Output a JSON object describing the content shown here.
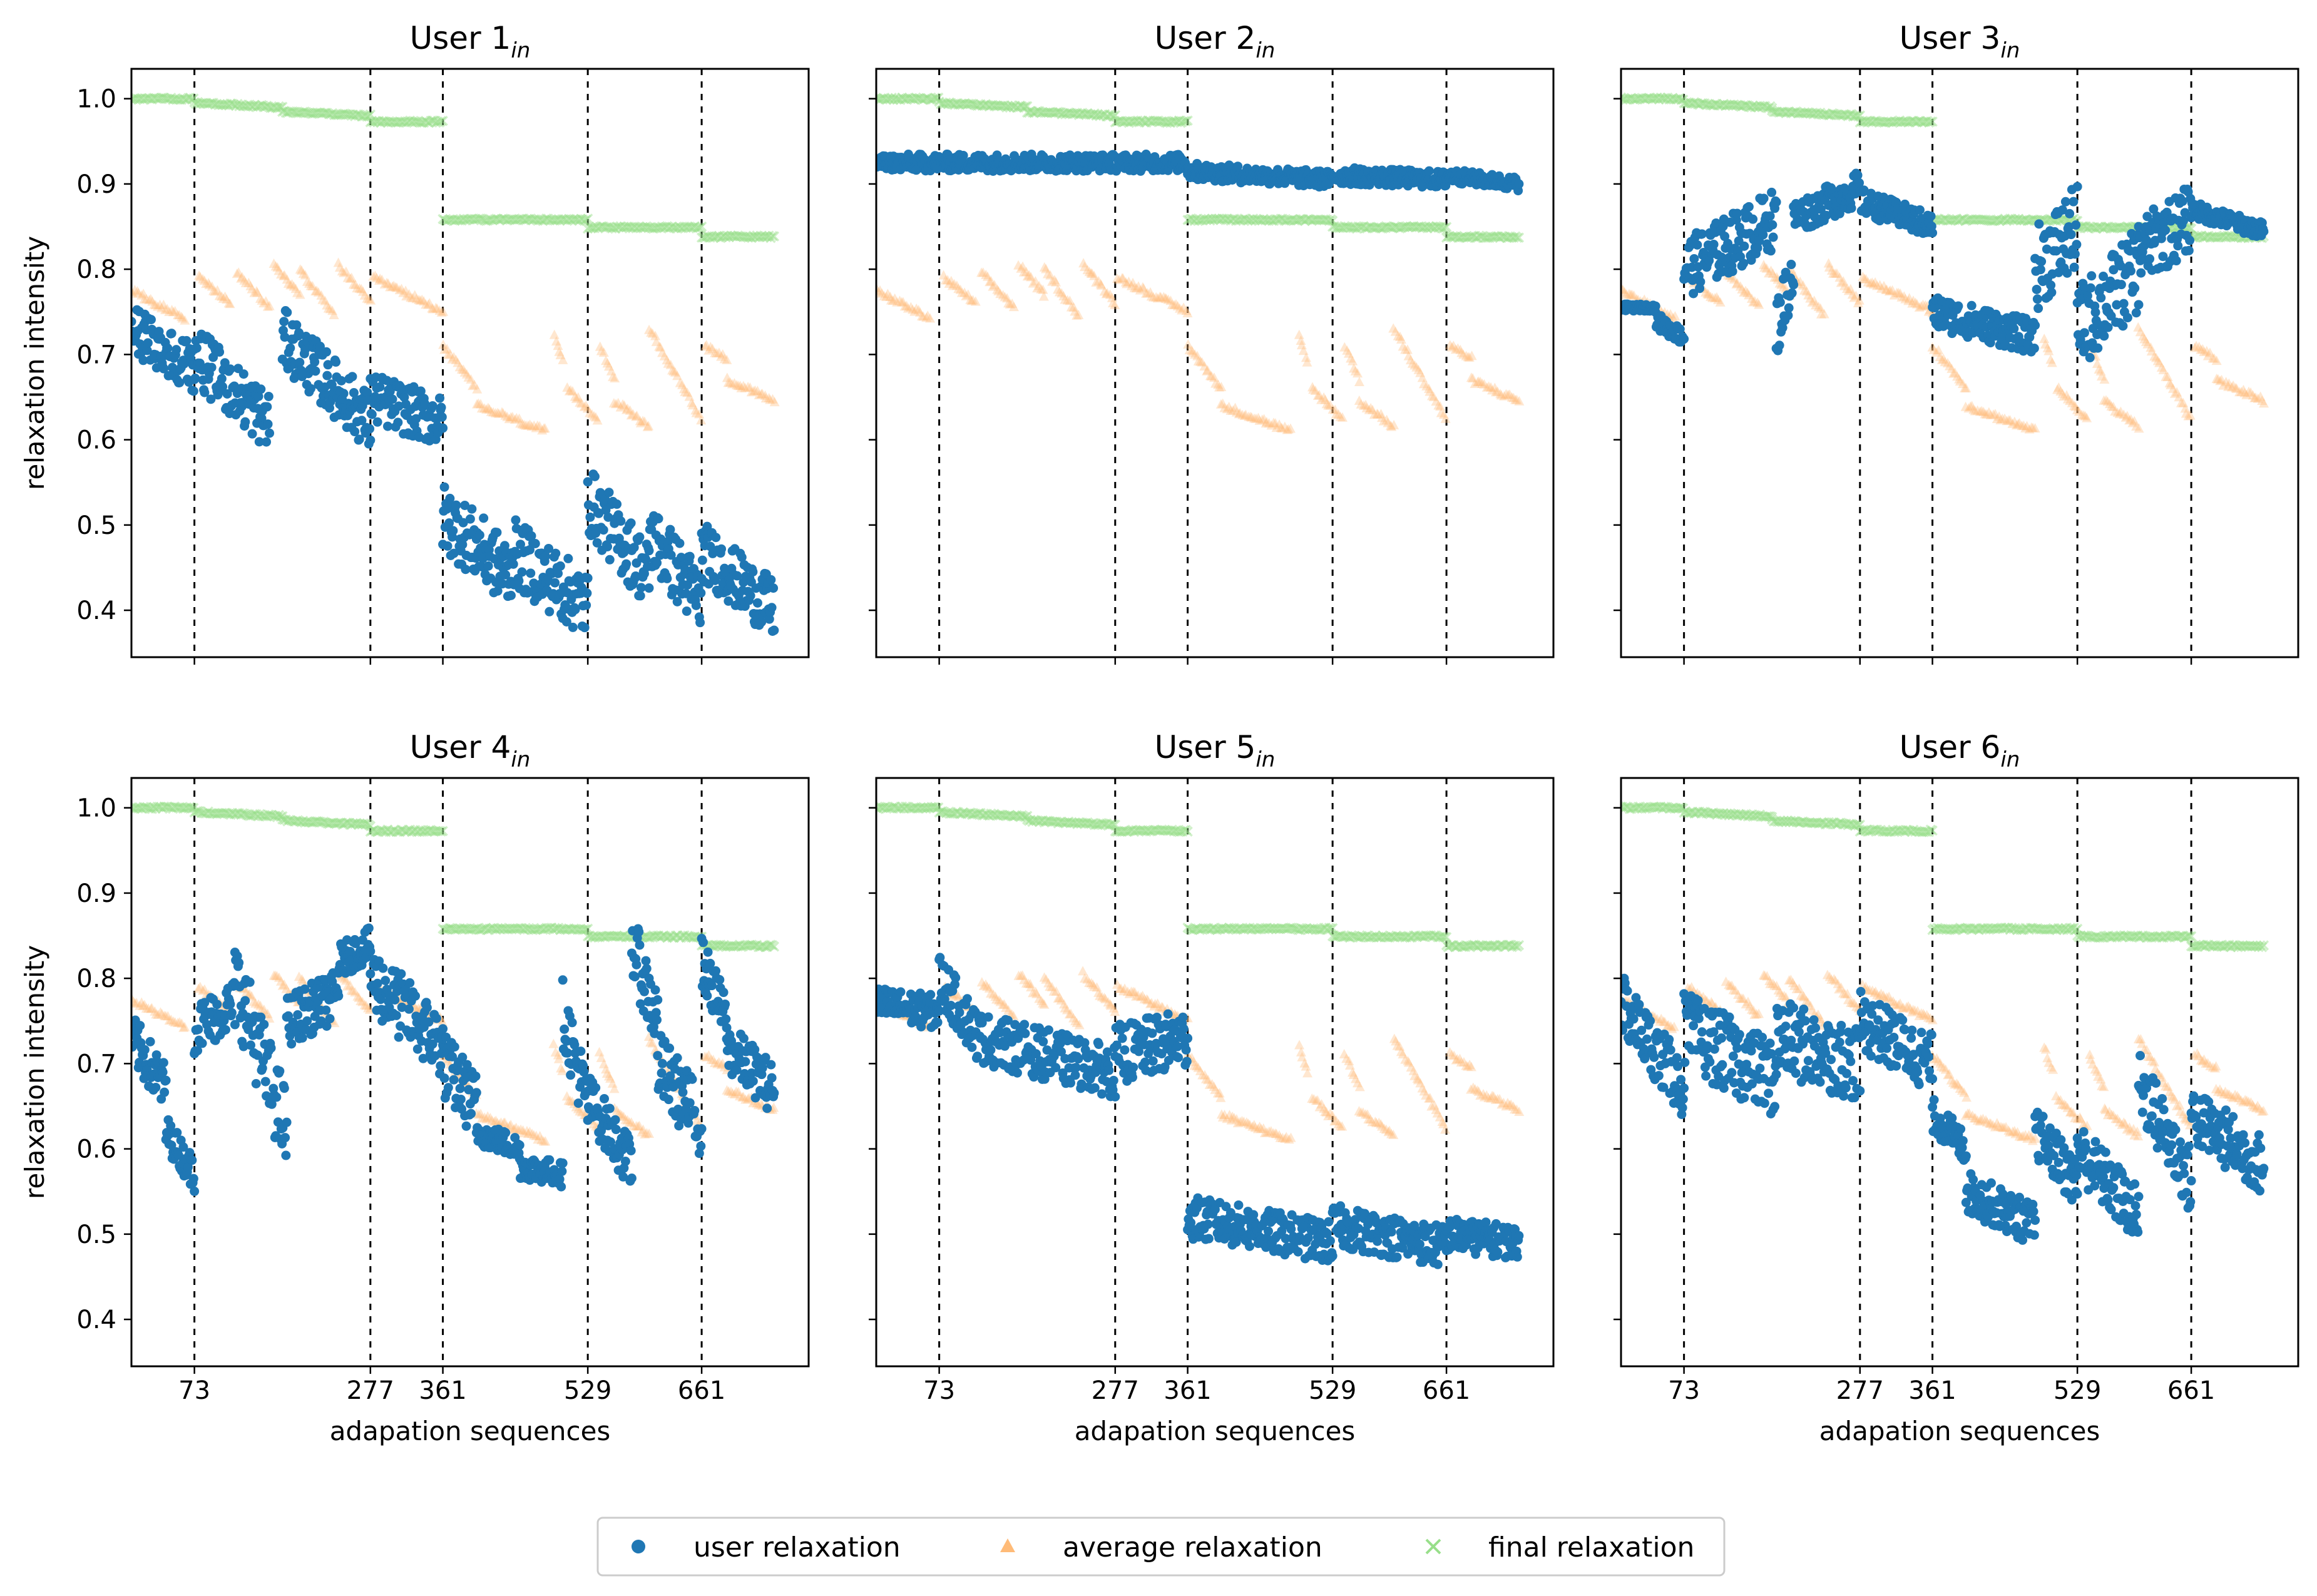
{
  "figure": {
    "legend_label": "legend"
  },
  "chart_data": {
    "type": "scatter",
    "ylabel": "relaxation intensity",
    "xlabel": "adapation sequences",
    "xlim": [
      0,
      785
    ],
    "ylim": [
      0.345,
      1.035
    ],
    "xticks": [
      73,
      277,
      361,
      529,
      661
    ],
    "yticks": [
      0.4,
      0.5,
      0.6,
      0.7,
      0.8,
      0.9,
      1.0
    ],
    "ytick_labels": [
      "0.4",
      "0.5",
      "0.6",
      "0.7",
      "0.8",
      "0.9",
      "1.0"
    ],
    "xtick_labels": [
      "73",
      "277",
      "361",
      "529",
      "661"
    ],
    "boundaries": [
      73,
      277,
      361,
      529,
      661
    ],
    "colors": {
      "user": "#1f77b4",
      "average": "#ffbb78",
      "final": "#98df8a"
    },
    "legend": [
      {
        "name": "user relaxation",
        "marker": "circle"
      },
      {
        "name": "average relaxation",
        "marker": "triangle"
      },
      {
        "name": "final relaxation",
        "marker": "x"
      }
    ],
    "final_relaxation": [
      {
        "x": [
          0,
          73
        ],
        "y": [
          1.0,
          1.0
        ]
      },
      {
        "x": [
          73,
          175
        ],
        "y": [
          0.995,
          0.99
        ]
      },
      {
        "x": [
          175,
          277
        ],
        "y": [
          0.985,
          0.98
        ]
      },
      {
        "x": [
          277,
          361
        ],
        "y": [
          0.973,
          0.973
        ]
      },
      {
        "x": [
          361,
          529
        ],
        "y": [
          0.858,
          0.858
        ]
      },
      {
        "x": [
          529,
          661
        ],
        "y": [
          0.849,
          0.849
        ]
      },
      {
        "x": [
          661,
          745
        ],
        "y": [
          0.838,
          0.838
        ]
      }
    ],
    "average_relaxation": [
      {
        "x": [
          0,
          62
        ],
        "y": [
          0.775,
          0.742
        ]
      },
      {
        "x": [
          78,
          115
        ],
        "y": [
          0.79,
          0.76
        ]
      },
      {
        "x": [
          122,
          160
        ],
        "y": [
          0.795,
          0.755
        ]
      },
      {
        "x": [
          165,
          195
        ],
        "y": [
          0.805,
          0.77
        ]
      },
      {
        "x": [
          195,
          235
        ],
        "y": [
          0.8,
          0.745
        ]
      },
      {
        "x": [
          240,
          277
        ],
        "y": [
          0.805,
          0.76
        ]
      },
      {
        "x": [
          280,
          361
        ],
        "y": [
          0.79,
          0.75
        ]
      },
      {
        "x": [
          361,
          400
        ],
        "y": [
          0.71,
          0.66
        ]
      },
      {
        "x": [
          400,
          480
        ],
        "y": [
          0.64,
          0.61
        ]
      },
      {
        "x": [
          490,
          500
        ],
        "y": [
          0.72,
          0.69
        ]
      },
      {
        "x": [
          505,
          540
        ],
        "y": [
          0.66,
          0.625
        ]
      },
      {
        "x": [
          543,
          560
        ],
        "y": [
          0.71,
          0.67
        ]
      },
      {
        "x": [
          560,
          600
        ],
        "y": [
          0.645,
          0.615
        ]
      },
      {
        "x": [
          600,
          660
        ],
        "y": [
          0.73,
          0.625
        ]
      },
      {
        "x": [
          665,
          690
        ],
        "y": [
          0.71,
          0.695
        ]
      },
      {
        "x": [
          690,
          745
        ],
        "y": [
          0.67,
          0.645
        ]
      }
    ],
    "panels": [
      {
        "title": "User 1",
        "subscript": "in",
        "user_relaxation": [
          {
            "x": [
              0,
              73
            ],
            "y": [
              0.73,
              0.685
            ],
            "spread": 0.03
          },
          {
            "x": [
              73,
              160
            ],
            "y": [
              0.7,
              0.62
            ],
            "spread": 0.035
          },
          {
            "x": [
              175,
              277
            ],
            "y": [
              0.72,
              0.62
            ],
            "spread": 0.035
          },
          {
            "x": [
              277,
              361
            ],
            "y": [
              0.65,
              0.62
            ],
            "spread": 0.03
          },
          {
            "x": [
              361,
              440
            ],
            "y": [
              0.51,
              0.44
            ],
            "spread": 0.04
          },
          {
            "x": [
              440,
              529
            ],
            "y": [
              0.47,
              0.405
            ],
            "spread": 0.04
          },
          {
            "x": [
              529,
              600
            ],
            "y": [
              0.53,
              0.44
            ],
            "spread": 0.04
          },
          {
            "x": [
              600,
              661
            ],
            "y": [
              0.49,
              0.41
            ],
            "spread": 0.04
          },
          {
            "x": [
              661,
              745
            ],
            "y": [
              0.47,
              0.4
            ],
            "spread": 0.035
          }
        ]
      },
      {
        "title": "User 2",
        "subscript": "in",
        "user_relaxation": [
          {
            "x": [
              0,
              361
            ],
            "y": [
              0.925,
              0.925
            ],
            "spread": 0.01
          },
          {
            "x": [
              361,
              529
            ],
            "y": [
              0.915,
              0.905
            ],
            "spread": 0.01
          },
          {
            "x": [
              529,
              661
            ],
            "y": [
              0.91,
              0.905
            ],
            "spread": 0.01
          },
          {
            "x": [
              661,
              745
            ],
            "y": [
              0.91,
              0.9
            ],
            "spread": 0.008
          }
        ]
      },
      {
        "title": "User 3",
        "subscript": "in",
        "user_relaxation": [
          {
            "x": [
              0,
              40
            ],
            "y": [
              0.755,
              0.755
            ],
            "spread": 0.004
          },
          {
            "x": [
              40,
              73
            ],
            "y": [
              0.74,
              0.72
            ],
            "spread": 0.01
          },
          {
            "x": [
              73,
              180
            ],
            "y": [
              0.8,
              0.86
            ],
            "spread": 0.035
          },
          {
            "x": [
              180,
              200
            ],
            "y": [
              0.73,
              0.8
            ],
            "spread": 0.035
          },
          {
            "x": [
              200,
              277
            ],
            "y": [
              0.86,
              0.895
            ],
            "spread": 0.02
          },
          {
            "x": [
              277,
              361
            ],
            "y": [
              0.88,
              0.85
            ],
            "spread": 0.015
          },
          {
            "x": [
              361,
              480
            ],
            "y": [
              0.75,
              0.72
            ],
            "spread": 0.02
          },
          {
            "x": [
              480,
              529
            ],
            "y": [
              0.8,
              0.85
            ],
            "spread": 0.05
          },
          {
            "x": [
              529,
              600
            ],
            "y": [
              0.73,
              0.8
            ],
            "spread": 0.05
          },
          {
            "x": [
              600,
              661
            ],
            "y": [
              0.82,
              0.86
            ],
            "spread": 0.04
          },
          {
            "x": [
              661,
              745
            ],
            "y": [
              0.87,
              0.845
            ],
            "spread": 0.01
          }
        ]
      },
      {
        "title": "User 4",
        "subscript": "in",
        "user_relaxation": [
          {
            "x": [
              0,
              40
            ],
            "y": [
              0.73,
              0.67
            ],
            "spread": 0.03
          },
          {
            "x": [
              40,
              73
            ],
            "y": [
              0.62,
              0.57
            ],
            "spread": 0.02
          },
          {
            "x": [
              73,
              120
            ],
            "y": [
              0.74,
              0.77
            ],
            "spread": 0.03
          },
          {
            "x": [
              120,
              180
            ],
            "y": [
              0.8,
              0.62
            ],
            "spread": 0.05
          },
          {
            "x": [
              180,
              240
            ],
            "y": [
              0.75,
              0.78
            ],
            "spread": 0.03
          },
          {
            "x": [
              240,
              277
            ],
            "y": [
              0.82,
              0.84
            ],
            "spread": 0.02
          },
          {
            "x": [
              277,
              361
            ],
            "y": [
              0.8,
              0.72
            ],
            "spread": 0.04
          },
          {
            "x": [
              361,
              400
            ],
            "y": [
              0.7,
              0.65
            ],
            "spread": 0.04
          },
          {
            "x": [
              400,
              450
            ],
            "y": [
              0.62,
              0.6
            ],
            "spread": 0.015
          },
          {
            "x": [
              450,
              500
            ],
            "y": [
              0.58,
              0.57
            ],
            "spread": 0.015
          },
          {
            "x": [
              500,
              529
            ],
            "y": [
              0.76,
              0.65
            ],
            "spread": 0.04
          },
          {
            "x": [
              529,
              580
            ],
            "y": [
              0.66,
              0.58
            ],
            "spread": 0.03
          },
          {
            "x": [
              580,
              610
            ],
            "y": [
              0.84,
              0.75
            ],
            "spread": 0.04
          },
          {
            "x": [
              610,
              661
            ],
            "y": [
              0.7,
              0.63
            ],
            "spread": 0.04
          },
          {
            "x": [
              661,
              690
            ],
            "y": [
              0.82,
              0.75
            ],
            "spread": 0.03
          },
          {
            "x": [
              690,
              745
            ],
            "y": [
              0.72,
              0.67
            ],
            "spread": 0.03
          }
        ]
      },
      {
        "title": "User 5",
        "subscript": "in",
        "user_relaxation": [
          {
            "x": [
              0,
              73
            ],
            "y": [
              0.77,
              0.76
            ],
            "spread": 0.02
          },
          {
            "x": [
              73,
              120
            ],
            "y": [
              0.8,
              0.73
            ],
            "spread": 0.03
          },
          {
            "x": [
              120,
              277
            ],
            "y": [
              0.73,
              0.69
            ],
            "spread": 0.03
          },
          {
            "x": [
              277,
              361
            ],
            "y": [
              0.71,
              0.73
            ],
            "spread": 0.035
          },
          {
            "x": [
              361,
              529
            ],
            "y": [
              0.52,
              0.49
            ],
            "spread": 0.025
          },
          {
            "x": [
              529,
              661
            ],
            "y": [
              0.51,
              0.485
            ],
            "spread": 0.025
          },
          {
            "x": [
              661,
              745
            ],
            "y": [
              0.5,
              0.49
            ],
            "spread": 0.02
          }
        ]
      },
      {
        "title": "User 6",
        "subscript": "in",
        "user_relaxation": [
          {
            "x": [
              0,
              73
            ],
            "y": [
              0.77,
              0.67
            ],
            "spread": 0.035
          },
          {
            "x": [
              73,
              180
            ],
            "y": [
              0.74,
              0.68
            ],
            "spread": 0.045
          },
          {
            "x": [
              180,
              277
            ],
            "y": [
              0.73,
              0.7
            ],
            "spread": 0.045
          },
          {
            "x": [
              277,
              361
            ],
            "y": [
              0.75,
              0.7
            ],
            "spread": 0.035
          },
          {
            "x": [
              361,
              400
            ],
            "y": [
              0.64,
              0.6
            ],
            "spread": 0.02
          },
          {
            "x": [
              400,
              480
            ],
            "y": [
              0.55,
              0.51
            ],
            "spread": 0.025
          },
          {
            "x": [
              480,
              529
            ],
            "y": [
              0.62,
              0.56
            ],
            "spread": 0.03
          },
          {
            "x": [
              529,
              600
            ],
            "y": [
              0.6,
              0.52
            ],
            "spread": 0.035
          },
          {
            "x": [
              600,
              661
            ],
            "y": [
              0.68,
              0.56
            ],
            "spread": 0.04
          },
          {
            "x": [
              661,
              745
            ],
            "y": [
              0.64,
              0.58
            ],
            "spread": 0.035
          }
        ]
      }
    ]
  }
}
